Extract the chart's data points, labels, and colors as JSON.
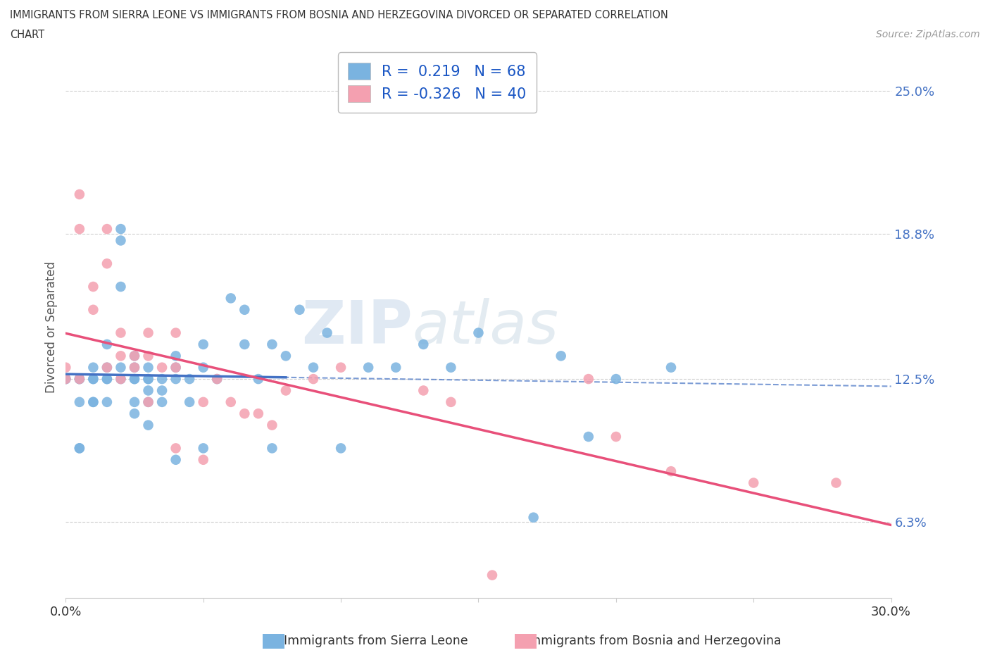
{
  "title_line1": "IMMIGRANTS FROM SIERRA LEONE VS IMMIGRANTS FROM BOSNIA AND HERZEGOVINA DIVORCED OR SEPARATED CORRELATION",
  "title_line2": "CHART",
  "source": "Source: ZipAtlas.com",
  "ylabel": "Divorced or Separated",
  "xlim": [
    0.0,
    0.3
  ],
  "ylim": [
    0.03,
    0.265
  ],
  "ytick_vals": [
    0.063,
    0.125,
    0.188,
    0.25
  ],
  "ytick_labels": [
    "6.3%",
    "12.5%",
    "18.8%",
    "25.0%"
  ],
  "gridline_color": "#d0d0d0",
  "watermark_zip": "ZIP",
  "watermark_atlas": "atlas",
  "color_sierra": "#7ab3e0",
  "color_bosnia": "#f4a0b0",
  "trendline_color_sierra": "#4472c4",
  "trendline_color_bosnia": "#e8507a",
  "R_sierra": 0.219,
  "N_sierra": 68,
  "R_bosnia": -0.326,
  "N_bosnia": 40,
  "sierra_x": [
    0.0,
    0.005,
    0.005,
    0.005,
    0.01,
    0.01,
    0.01,
    0.015,
    0.015,
    0.015,
    0.015,
    0.02,
    0.02,
    0.02,
    0.02,
    0.025,
    0.025,
    0.025,
    0.025,
    0.025,
    0.03,
    0.03,
    0.03,
    0.03,
    0.03,
    0.035,
    0.035,
    0.035,
    0.04,
    0.04,
    0.04,
    0.045,
    0.045,
    0.05,
    0.05,
    0.055,
    0.06,
    0.065,
    0.065,
    0.07,
    0.075,
    0.075,
    0.08,
    0.085,
    0.09,
    0.095,
    0.1,
    0.11,
    0.12,
    0.13,
    0.14,
    0.15,
    0.17,
    0.18,
    0.19,
    0.2,
    0.22,
    0.0,
    0.005,
    0.005,
    0.01,
    0.01,
    0.015,
    0.02,
    0.025,
    0.03,
    0.04,
    0.05
  ],
  "sierra_y": [
    0.125,
    0.125,
    0.115,
    0.095,
    0.13,
    0.125,
    0.115,
    0.14,
    0.13,
    0.125,
    0.115,
    0.19,
    0.185,
    0.165,
    0.125,
    0.135,
    0.13,
    0.125,
    0.115,
    0.11,
    0.13,
    0.125,
    0.12,
    0.115,
    0.105,
    0.125,
    0.12,
    0.115,
    0.13,
    0.125,
    0.09,
    0.125,
    0.115,
    0.14,
    0.095,
    0.125,
    0.16,
    0.155,
    0.14,
    0.125,
    0.14,
    0.095,
    0.135,
    0.155,
    0.13,
    0.145,
    0.095,
    0.13,
    0.13,
    0.14,
    0.13,
    0.145,
    0.065,
    0.135,
    0.1,
    0.125,
    0.13,
    0.125,
    0.125,
    0.095,
    0.125,
    0.115,
    0.125,
    0.13,
    0.125,
    0.125,
    0.135,
    0.13
  ],
  "bosnia_x": [
    0.0,
    0.0,
    0.005,
    0.005,
    0.01,
    0.01,
    0.015,
    0.015,
    0.02,
    0.02,
    0.025,
    0.025,
    0.03,
    0.03,
    0.035,
    0.04,
    0.04,
    0.05,
    0.055,
    0.06,
    0.065,
    0.07,
    0.075,
    0.08,
    0.09,
    0.1,
    0.13,
    0.14,
    0.155,
    0.19,
    0.2,
    0.22,
    0.25,
    0.28,
    0.005,
    0.015,
    0.02,
    0.03,
    0.04,
    0.05
  ],
  "bosnia_y": [
    0.125,
    0.13,
    0.19,
    0.205,
    0.155,
    0.165,
    0.19,
    0.175,
    0.145,
    0.135,
    0.135,
    0.13,
    0.145,
    0.135,
    0.13,
    0.145,
    0.13,
    0.115,
    0.125,
    0.115,
    0.11,
    0.11,
    0.105,
    0.12,
    0.125,
    0.13,
    0.12,
    0.115,
    0.04,
    0.125,
    0.1,
    0.085,
    0.08,
    0.08,
    0.125,
    0.13,
    0.125,
    0.115,
    0.095,
    0.09
  ],
  "trendline_sierra_x0": 0.0,
  "trendline_sierra_x1": 0.3,
  "trendline_bosnia_x0": 0.0,
  "trendline_bosnia_x1": 0.3
}
